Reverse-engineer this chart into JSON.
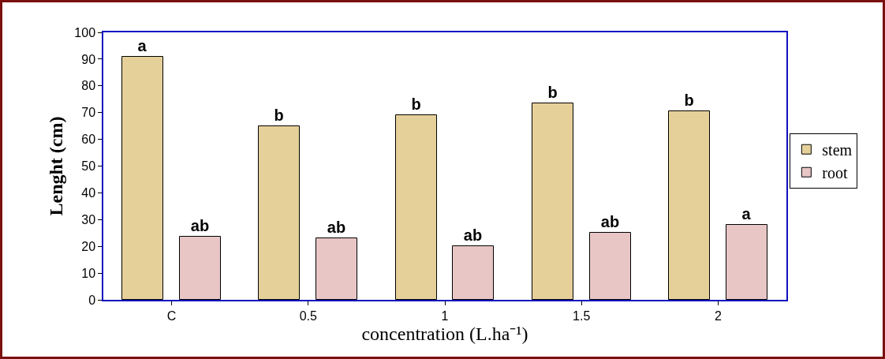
{
  "chart_data": {
    "type": "bar",
    "xlabel": "concentration (L.ha⁻¹)",
    "ylabel": "Lenght (cm)",
    "categories": [
      "C",
      "0.5",
      "1",
      "1.5",
      "2"
    ],
    "series": [
      {
        "name": "stem",
        "color": "#e6d09a",
        "values": [
          91,
          65,
          69,
          73.5,
          70.5
        ],
        "value_labels": [
          "a",
          "b",
          "b",
          "b",
          "b"
        ]
      },
      {
        "name": "root",
        "color": "#e8c6c6",
        "values": [
          23.5,
          23,
          20,
          25,
          28
        ],
        "value_labels": [
          "ab",
          "ab",
          "ab",
          "ab",
          "a"
        ]
      }
    ],
    "ylim": [
      0,
      100
    ],
    "yticks": [
      0,
      10,
      20,
      30,
      40,
      50,
      60,
      70,
      80,
      90,
      100
    ],
    "grid": false,
    "legend": "right"
  }
}
